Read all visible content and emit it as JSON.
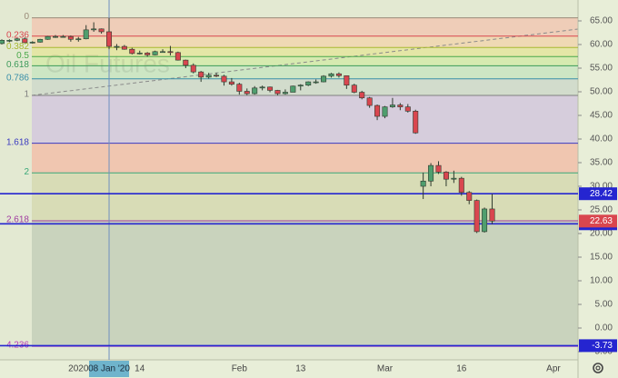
{
  "chart_data": {
    "type": "candlestick",
    "watermark": "Oil Futures",
    "categories": [
      "2019-12-17",
      "2019-12-18",
      "2019-12-19",
      "2019-12-20",
      "2019-12-23",
      "2019-12-24",
      "2019-12-26",
      "2019-12-27",
      "2019-12-30",
      "2019-12-31",
      "2020-01-02",
      "2020-01-03",
      "2020-01-06",
      "2020-01-07",
      "2020-01-08",
      "2020-01-09",
      "2020-01-10",
      "2020-01-13",
      "2020-01-14",
      "2020-01-15",
      "2020-01-16",
      "2020-01-17",
      "2020-01-21",
      "2020-01-22",
      "2020-01-23",
      "2020-01-24",
      "2020-01-27",
      "2020-01-28",
      "2020-01-29",
      "2020-01-30",
      "2020-01-31",
      "2020-02-03",
      "2020-02-04",
      "2020-02-05",
      "2020-02-06",
      "2020-02-07",
      "2020-02-10",
      "2020-02-11",
      "2020-02-12",
      "2020-02-13",
      "2020-02-14",
      "2020-02-18",
      "2020-02-19",
      "2020-02-20",
      "2020-02-21",
      "2020-02-24",
      "2020-02-25",
      "2020-02-26",
      "2020-02-27",
      "2020-02-28",
      "2020-03-02",
      "2020-03-03",
      "2020-03-04",
      "2020-03-05",
      "2020-03-06",
      "2020-03-09",
      "2020-03-10",
      "2020-03-11",
      "2020-03-12",
      "2020-03-13",
      "2020-03-16",
      "2020-03-17",
      "2020-03-18",
      "2020-03-19",
      "2020-03-20"
    ],
    "open": [
      60.2,
      60.9,
      60.9,
      61.2,
      60.4,
      60.5,
      61.1,
      61.7,
      61.7,
      61.7,
      61.1,
      61.2,
      63.1,
      63.3,
      62.7,
      59.6,
      59.6,
      59.0,
      58.1,
      58.2,
      57.8,
      58.5,
      58.5,
      58.3,
      56.7,
      55.6,
      54.2,
      53.1,
      53.5,
      53.3,
      52.1,
      51.6,
      50.1,
      49.6,
      50.8,
      51.0,
      50.3,
      49.6,
      49.9,
      51.2,
      51.4,
      52.1,
      52.1,
      53.3,
      53.8,
      53.4,
      51.4,
      49.9,
      48.7,
      47.1,
      44.8,
      46.8,
      47.2,
      46.8,
      45.9,
      30.0,
      31.1,
      34.4,
      33.0,
      31.5,
      31.7,
      28.7,
      27.0,
      20.4,
      25.2
    ],
    "high": [
      61.1,
      61.1,
      61.4,
      61.5,
      60.7,
      61.2,
      61.8,
      62.0,
      62.0,
      61.9,
      61.6,
      64.1,
      64.7,
      63.4,
      65.6,
      60.1,
      59.9,
      59.3,
      58.7,
      58.4,
      58.7,
      59.0,
      59.7,
      58.5,
      56.8,
      56.0,
      54.4,
      54.0,
      54.0,
      53.6,
      52.9,
      51.9,
      50.7,
      51.2,
      51.3,
      51.1,
      50.4,
      50.5,
      51.3,
      51.6,
      52.2,
      52.6,
      53.5,
      54.0,
      54.1,
      53.4,
      51.7,
      50.2,
      48.9,
      47.3,
      47.0,
      48.7,
      47.6,
      47.4,
      46.2,
      32.9,
      34.9,
      35.3,
      33.2,
      33.3,
      32.0,
      29.0,
      27.2,
      25.5,
      28.4
    ],
    "low": [
      60.0,
      60.5,
      60.7,
      60.3,
      60.2,
      60.4,
      61.0,
      61.4,
      61.5,
      60.6,
      60.6,
      61.1,
      62.7,
      62.3,
      59.0,
      58.8,
      58.9,
      57.9,
      57.9,
      57.4,
      57.7,
      58.3,
      57.7,
      56.6,
      55.0,
      53.9,
      52.1,
      52.8,
      53.1,
      51.3,
      51.3,
      49.4,
      49.3,
      49.4,
      50.3,
      49.9,
      49.3,
      49.4,
      49.9,
      50.3,
      51.2,
      51.7,
      52.0,
      53.0,
      53.0,
      50.6,
      49.7,
      48.4,
      46.6,
      44.0,
      44.4,
      46.6,
      46.1,
      45.6,
      41.1,
      27.3,
      30.0,
      32.6,
      30.0,
      30.7,
      28.0,
      26.2,
      20.1,
      20.2,
      22.0
    ],
    "close": [
      60.9,
      60.9,
      61.2,
      60.4,
      60.5,
      61.1,
      61.7,
      61.7,
      61.7,
      61.1,
      61.2,
      63.1,
      63.3,
      62.7,
      59.6,
      59.6,
      59.0,
      58.1,
      58.2,
      57.8,
      58.5,
      58.5,
      58.3,
      56.7,
      55.6,
      54.2,
      53.1,
      53.5,
      53.3,
      52.1,
      51.6,
      50.1,
      49.6,
      50.8,
      51.0,
      50.3,
      49.6,
      49.9,
      51.2,
      51.4,
      52.1,
      52.1,
      53.3,
      53.8,
      53.4,
      51.4,
      49.9,
      48.7,
      47.1,
      44.8,
      46.8,
      47.2,
      46.8,
      45.9,
      41.3,
      31.1,
      34.4,
      33.0,
      31.5,
      31.7,
      28.7,
      27.0,
      20.4,
      25.2,
      22.63
    ],
    "up_color": "#4f9e6e",
    "down_color": "#d9464f",
    "ylim": [
      -6.73,
      69.42
    ],
    "yticks": [
      {
        "value": 65,
        "label": "65.00"
      },
      {
        "value": 60,
        "label": "60.00"
      },
      {
        "value": 55,
        "label": "55.00"
      },
      {
        "value": 50,
        "label": "50.00"
      },
      {
        "value": 45,
        "label": "45.00"
      },
      {
        "value": 40,
        "label": "40.00"
      },
      {
        "value": 35,
        "label": "35.00"
      },
      {
        "value": 30,
        "label": "30.00"
      },
      {
        "value": 25,
        "label": "25.00"
      },
      {
        "value": 20,
        "label": "20.00"
      },
      {
        "value": 15,
        "label": "15.00"
      },
      {
        "value": 10,
        "label": "10.00"
      },
      {
        "value": 5,
        "label": "5.00"
      },
      {
        "value": 0,
        "label": "0.00"
      },
      {
        "value": -5,
        "label": "-5.00"
      }
    ],
    "xticks": [
      {
        "value": "2020-01-02",
        "label": "2020"
      },
      {
        "value": "2020-01-14",
        "label": "14"
      },
      {
        "value": "2020-02-03",
        "label": "Feb"
      },
      {
        "value": "2020-02-13",
        "label": "13"
      },
      {
        "value": "2020-03-02",
        "label": "Mar"
      },
      {
        "value": "2020-03-16",
        "label": "16"
      },
      {
        "value": "2020-04-01",
        "label": "Apr"
      }
    ],
    "crosshair": {
      "value": "2020-01-08",
      "label": "08 Jan '20"
    },
    "fib_levels": [
      {
        "ratio": 0,
        "price": 65.65,
        "color": "#9a8a78",
        "fill": "#efcdb8"
      },
      {
        "ratio": 0.236,
        "price": 61.78,
        "color": "#d9464f",
        "fill": "#efd9b4"
      },
      {
        "ratio": 0.382,
        "price": 59.38,
        "color": "#a8b830",
        "fill": "#e4e6a6"
      },
      {
        "ratio": 0.5,
        "price": 57.44,
        "color": "#4aa84a",
        "fill": "#d6eab0"
      },
      {
        "ratio": 0.618,
        "price": 55.51,
        "color": "#3c9a5a",
        "fill": "#cde6c4"
      },
      {
        "ratio": 0.786,
        "price": 52.75,
        "color": "#3a8fa8",
        "fill": "#d2dccc"
      },
      {
        "ratio": 1,
        "price": 49.24,
        "color": "#808080",
        "fill": "#d6cddc"
      },
      {
        "ratio": 1.618,
        "price": 39.1,
        "color": "#3a3ac0",
        "fill": "#f0c6b0"
      },
      {
        "ratio": 2,
        "price": 32.83,
        "color": "#3aa878",
        "fill": "#d8dcb6"
      },
      {
        "ratio": 2.618,
        "price": 22.69,
        "color": "#a03aa0",
        "fill": "#c9d3bd"
      },
      {
        "ratio": 4.236,
        "price": -3.86,
        "color": "#b83ab8"
      }
    ],
    "price_lines": [
      {
        "price": 28.42,
        "color": "#2525d0"
      },
      {
        "price": 22.06,
        "color": "#2525d0"
      },
      {
        "price": -3.73,
        "color": "#2525d0"
      }
    ],
    "last_price_color": "#d9464f"
  }
}
